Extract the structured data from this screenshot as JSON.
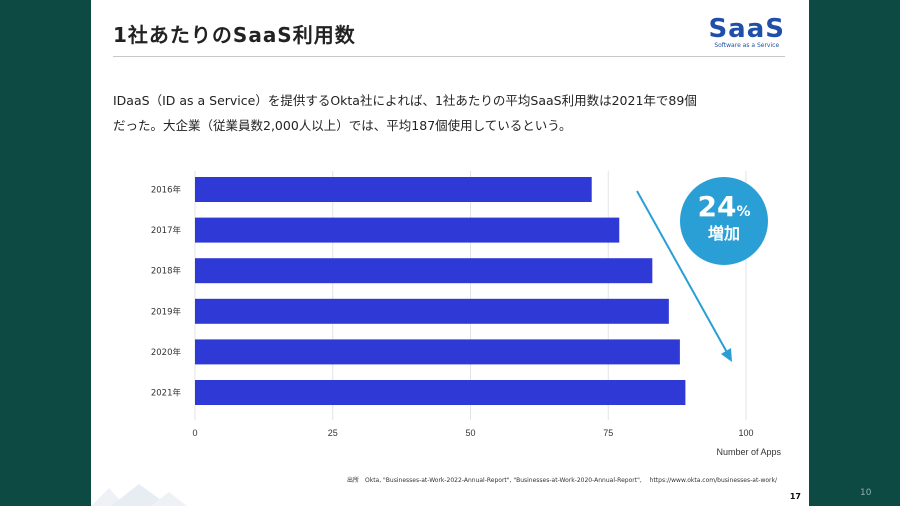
{
  "slide": {
    "title": "1社あたりのSaaS利用数",
    "logo_word": "SaaS",
    "logo_sub": "Software as a Service",
    "text_line1": "IDaaS（ID as a Service）を提供するOkta社によれば、1社あたりの平均SaaS利用数は2021年で89個",
    "text_line2": "だった。大企業（従業員数2,000人以上）では、平均187個使用しているという。",
    "badge_value": "24",
    "badge_unit": "%",
    "badge_label": "増加",
    "source": "出所　Okta, \"Businesses-at-Work-2022-Annual-Report\", \"Businesses-at-Work-2020-Annual-Report\",　 https://www.okta.com/businesses-at-work/",
    "slide_number": "17"
  },
  "page_number": "10",
  "colors": {
    "bar": "#2f3ad6",
    "accent": "#2a9fd6",
    "background": "#0d4a44"
  },
  "chart_data": {
    "type": "bar",
    "orientation": "horizontal",
    "categories": [
      "2016年",
      "2017年",
      "2018年",
      "2019年",
      "2020年",
      "2021年"
    ],
    "values": [
      72,
      77,
      83,
      86,
      88,
      89
    ],
    "xlabel": "Number of Apps",
    "xlim": [
      0,
      100
    ],
    "xticks": [
      0,
      25,
      50,
      75,
      100
    ],
    "grid": true
  }
}
